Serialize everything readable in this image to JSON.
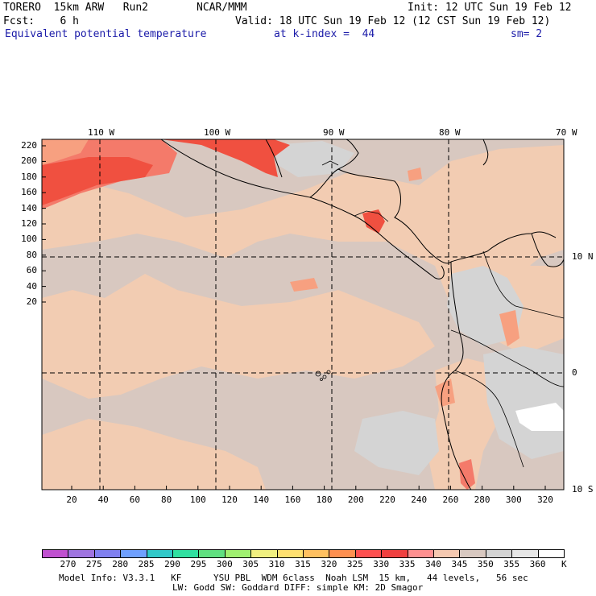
{
  "header": {
    "model": "TORERO  15km ARW   Run2",
    "org": "NCAR/MMM",
    "init": "Init: 12 UTC Sun 19 Feb 12",
    "fcst": "Fcst:    6 h",
    "valid": "Valid: 18 UTC Sun 19 Feb 12 (12 CST Sun 19 Feb 12)",
    "field": "Equivalent potential temperature",
    "level": "at k-index =  44",
    "smooth": "sm= 2"
  },
  "map": {
    "top_lon_labels": [
      "110 W",
      "100 W",
      "90 W",
      "80 W",
      "70 W"
    ],
    "right_lat_labels": [
      "10 N",
      "0",
      "10 S"
    ],
    "y_ticks": [
      "220",
      "200",
      "180",
      "160",
      "140",
      "120",
      "100",
      "80",
      "60",
      "40",
      "20"
    ],
    "x_ticks": [
      "20",
      "40",
      "60",
      "80",
      "100",
      "120",
      "140",
      "160",
      "180",
      "200",
      "220",
      "240",
      "260",
      "280",
      "300",
      "320"
    ]
  },
  "colorbar": {
    "labels": [
      "270",
      "275",
      "280",
      "285",
      "290",
      "295",
      "300",
      "305",
      "310",
      "315",
      "320",
      "325",
      "330",
      "335",
      "340",
      "345",
      "350",
      "355",
      "360"
    ],
    "unit": "K",
    "colors": [
      "#c050d0",
      "#9f74e0",
      "#8080f0",
      "#6fa0ff",
      "#30c8c8",
      "#30e0a0",
      "#60e080",
      "#a0f070",
      "#f0f080",
      "#ffe070",
      "#ffc060",
      "#ff9050",
      "#ff5050",
      "#f04040",
      "#ff9090",
      "#f5c8b0",
      "#d8c8c0",
      "#d4d4d4",
      "#e6e6e6",
      "#ffffff"
    ]
  },
  "footer": {
    "line1": "Model Info: V3.3.1   KF      YSU PBL  WDM 6class  Noah LSM  15 km,   44 levels,   56 sec",
    "line2": "LW: Godd SW: Goddard DIFF: simple KM: 2D Smagor"
  }
}
